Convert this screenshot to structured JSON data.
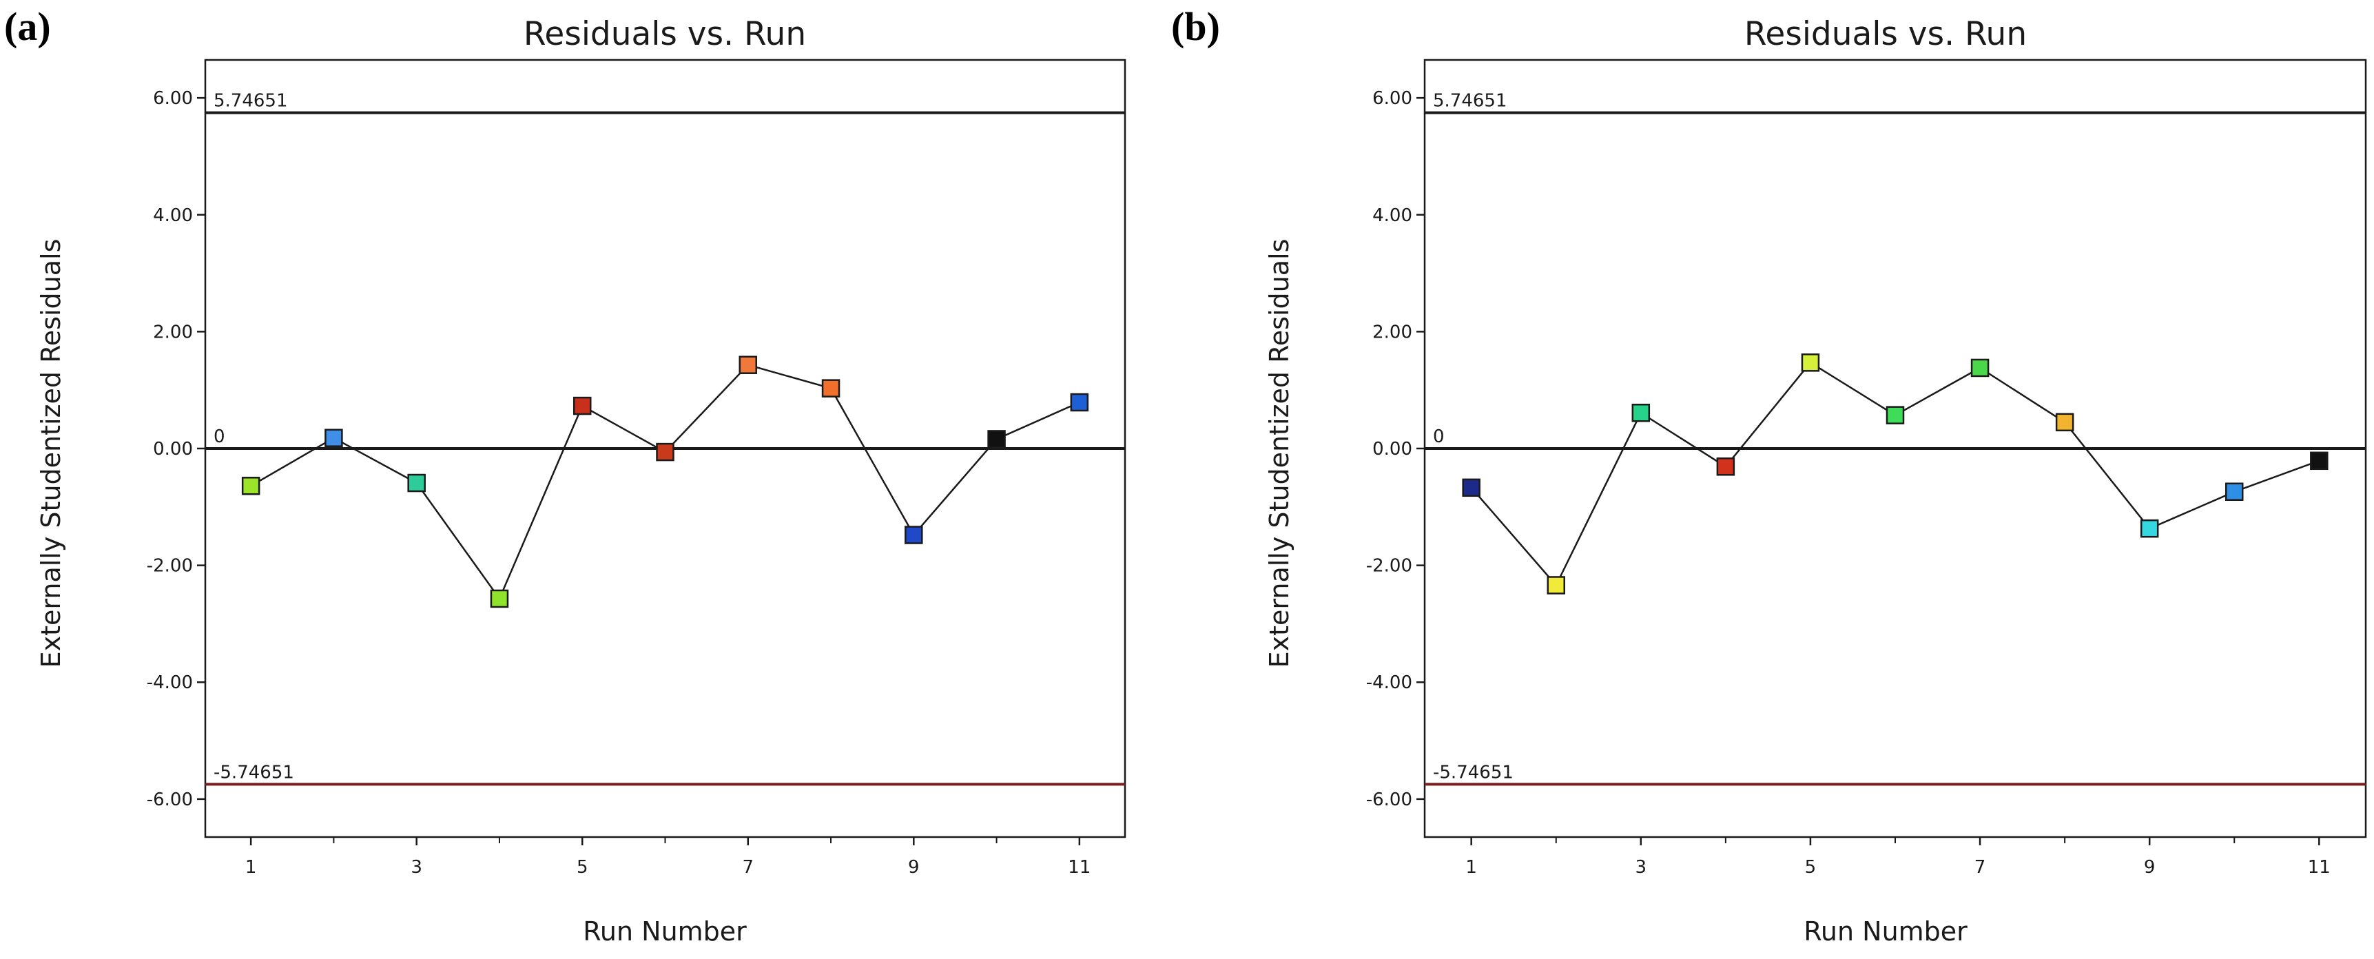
{
  "chart_data": [
    {
      "panel_label": "(a)",
      "type": "line",
      "title": "Residuals vs. Run",
      "xlabel": "Run Number",
      "ylabel": "Externally Studentized Residuals",
      "xlim": [
        0.45,
        11.55
      ],
      "ylim": [
        -6.65,
        6.65
      ],
      "x_ticks": [
        1,
        3,
        5,
        7,
        9,
        11
      ],
      "x_minor_ticks": [
        2,
        4,
        6,
        8,
        10
      ],
      "y_ticks": [
        -6,
        -4,
        -2,
        0,
        2,
        4,
        6
      ],
      "y_tick_labels": [
        "-6.00",
        "-4.00",
        "-2.00",
        "0.00",
        "2.00",
        "4.00",
        "6.00"
      ],
      "reference_lines": [
        {
          "value": 5.74651,
          "label": "5.74651",
          "color": "#1a1a1a"
        },
        {
          "value": 0,
          "label": "0",
          "color": "#1a1a1a"
        },
        {
          "value": -5.74651,
          "label": "-5.74651",
          "color": "#7a1f1f"
        }
      ],
      "x": [
        1,
        2,
        3,
        4,
        5,
        6,
        7,
        8,
        9,
        10,
        11
      ],
      "values": [
        -0.64,
        0.18,
        -0.59,
        -2.57,
        0.73,
        -0.06,
        1.43,
        1.03,
        -1.48,
        0.16,
        0.79
      ],
      "point_colors": [
        "#9be42a",
        "#3f8fe8",
        "#2ecc9a",
        "#8fe32a",
        "#c9301c",
        "#c93a1c",
        "#f0783a",
        "#f06f2c",
        "#1f49c9",
        "#111111",
        "#1f5fd6"
      ],
      "grid": false
    },
    {
      "panel_label": "(b)",
      "type": "line",
      "title": "Residuals vs. Run",
      "xlabel": "Run Number",
      "ylabel": "Externally Studentized Residuals",
      "xlim": [
        0.45,
        11.55
      ],
      "ylim": [
        -6.65,
        6.65
      ],
      "x_ticks": [
        1,
        3,
        5,
        7,
        9,
        11
      ],
      "x_minor_ticks": [
        2,
        4,
        6,
        8,
        10
      ],
      "y_ticks": [
        -6,
        -4,
        -2,
        0,
        2,
        4,
        6
      ],
      "y_tick_labels": [
        "-6.00",
        "-4.00",
        "-2.00",
        "0.00",
        "2.00",
        "4.00",
        "6.00"
      ],
      "reference_lines": [
        {
          "value": 5.74651,
          "label": "5.74651",
          "color": "#1a1a1a"
        },
        {
          "value": 0,
          "label": "0",
          "color": "#1a1a1a"
        },
        {
          "value": -5.74651,
          "label": "-5.74651",
          "color": "#7a1f1f"
        }
      ],
      "x": [
        1,
        2,
        3,
        4,
        5,
        6,
        7,
        8,
        9,
        10,
        11
      ],
      "values": [
        -0.67,
        -2.34,
        0.61,
        -0.31,
        1.47,
        0.57,
        1.38,
        0.45,
        -1.37,
        -0.74,
        -0.21
      ],
      "point_colors": [
        "#1c2a8c",
        "#f2ea3a",
        "#27d28a",
        "#d2321c",
        "#d6ef3a",
        "#3fdc5a",
        "#4ad84a",
        "#f2b430",
        "#35d8e0",
        "#2f8ee6",
        "#111111"
      ],
      "grid": false
    }
  ]
}
